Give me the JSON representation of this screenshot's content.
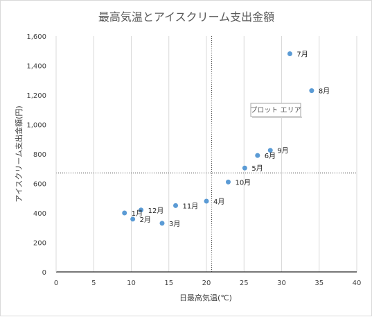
{
  "chart_data": {
    "type": "scatter",
    "title": "最高気温とアイスクリーム支出金額",
    "xlabel": "日最高気温(℃)",
    "ylabel": "アイスクリーム支出金額(円)",
    "xlim": [
      0,
      40
    ],
    "ylim": [
      0,
      1600
    ],
    "xticks": [
      0,
      5,
      10,
      15,
      20,
      25,
      30,
      35,
      40
    ],
    "yticks": [
      0,
      200,
      400,
      600,
      800,
      1000,
      1200,
      1400,
      1600
    ],
    "ytick_labels": [
      "0",
      "200",
      "400",
      "600",
      "800",
      "1,000",
      "1,200",
      "1,400",
      "1,600"
    ],
    "grid": "vertical",
    "marker_color": "#5b9bd5",
    "reference_lines": {
      "x": 20.7,
      "y": 672
    },
    "points": [
      {
        "label": "1月",
        "x": 9.1,
        "y": 400
      },
      {
        "label": "2月",
        "x": 10.2,
        "y": 358
      },
      {
        "label": "3月",
        "x": 14.1,
        "y": 330
      },
      {
        "label": "4月",
        "x": 20.0,
        "y": 480
      },
      {
        "label": "5月",
        "x": 25.1,
        "y": 705
      },
      {
        "label": "6月",
        "x": 26.8,
        "y": 790
      },
      {
        "label": "7月",
        "x": 31.1,
        "y": 1480
      },
      {
        "label": "8月",
        "x": 34.0,
        "y": 1230
      },
      {
        "label": "9月",
        "x": 28.5,
        "y": 825
      },
      {
        "label": "10月",
        "x": 22.9,
        "y": 610
      },
      {
        "label": "11月",
        "x": 15.9,
        "y": 450
      },
      {
        "label": "12月",
        "x": 11.3,
        "y": 420
      }
    ],
    "tooltip": "プロット エリア"
  }
}
